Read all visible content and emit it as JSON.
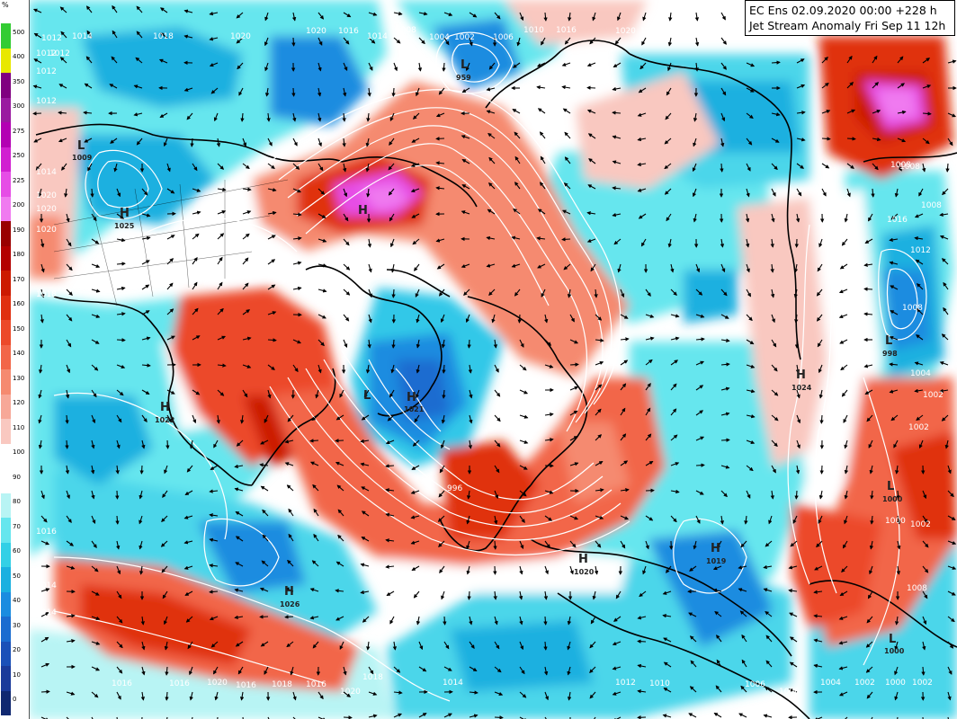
{
  "title": {
    "line1": "EC Ens 02.09.2020 00:00 +228 h",
    "line2": "Jet Stream Anomaly Fri Sep 11 12h"
  },
  "colorbar": {
    "unit": "%",
    "levels": [
      {
        "label": "500",
        "color": "#33cc33"
      },
      {
        "label": "400",
        "color": "#e8e800"
      },
      {
        "label": "350",
        "color": "#800080"
      },
      {
        "label": "300",
        "color": "#9a1aa0"
      },
      {
        "label": "275",
        "color": "#b300b3"
      },
      {
        "label": "250",
        "color": "#d11fd1"
      },
      {
        "label": "225",
        "color": "#e64de6"
      },
      {
        "label": "200",
        "color": "#f07af0"
      },
      {
        "label": "190",
        "color": "#990000"
      },
      {
        "label": "180",
        "color": "#b30000"
      },
      {
        "label": "170",
        "color": "#cc1a00"
      },
      {
        "label": "160",
        "color": "#e03010"
      },
      {
        "label": "150",
        "color": "#ec4a2a"
      },
      {
        "label": "140",
        "color": "#f26648"
      },
      {
        "label": "130",
        "color": "#f58a70"
      },
      {
        "label": "120",
        "color": "#f7a898"
      },
      {
        "label": "110",
        "color": "#f9c8c0"
      },
      {
        "label": "100",
        "color": "#ffffff"
      },
      {
        "label": "90",
        "color": "#ffffff"
      },
      {
        "label": "80",
        "color": "#b8f4f4"
      },
      {
        "label": "70",
        "color": "#66e6ee"
      },
      {
        "label": "60",
        "color": "#33d0e6"
      },
      {
        "label": "50",
        "color": "#1ab0e0"
      },
      {
        "label": "40",
        "color": "#1a8ce0"
      },
      {
        "label": "30",
        "color": "#1a6cd0"
      },
      {
        "label": "20",
        "color": "#1a50b8"
      },
      {
        "label": "10",
        "color": "#1a3a9a"
      },
      {
        "label": "0",
        "color": "#102870"
      }
    ]
  },
  "pressure_centers": [
    {
      "type": "L",
      "value": "959"
    },
    {
      "type": "L",
      "value": "1009"
    },
    {
      "type": "H",
      "value": "1025"
    },
    {
      "type": "H",
      "value": ""
    },
    {
      "type": "H",
      "value": "1021"
    },
    {
      "type": "H",
      "value": "1022"
    },
    {
      "type": "H",
      "value": "1026"
    },
    {
      "type": "H",
      "value": "1020"
    },
    {
      "type": "H",
      "value": "1019"
    },
    {
      "type": "H",
      "value": "1024"
    },
    {
      "type": "L",
      "value": "998"
    },
    {
      "type": "L",
      "value": "1000"
    },
    {
      "type": "L",
      "value": "1000"
    },
    {
      "type": "L",
      "value": ""
    }
  ],
  "isobar_labels": [
    "1012",
    "1014",
    "1018",
    "1020",
    "1020",
    "1016",
    "1014",
    "1008",
    "1004",
    "1002",
    "1006",
    "1010",
    "1016",
    "1020",
    "1018",
    "1016",
    "1012",
    "1012",
    "1012",
    "1012",
    "1014",
    "1020",
    "1020",
    "1020",
    "1018",
    "1016",
    "1014",
    "996",
    "1008",
    "1008",
    "1008",
    "1016",
    "1012",
    "1008",
    "1002",
    "1004",
    "1002",
    "1000",
    "1002",
    "1008",
    "1014",
    "1016",
    "1016",
    "1016",
    "1018",
    "1020",
    "1020",
    "1018",
    "1016",
    "1014",
    "1012",
    "1010",
    "1006",
    "1006",
    "1004",
    "1002",
    "1000",
    "1002"
  ],
  "colors": {
    "background": "#ffffff",
    "wind_arrow": "#000000",
    "isobar": "#ffffff",
    "coastline": "#000000"
  }
}
